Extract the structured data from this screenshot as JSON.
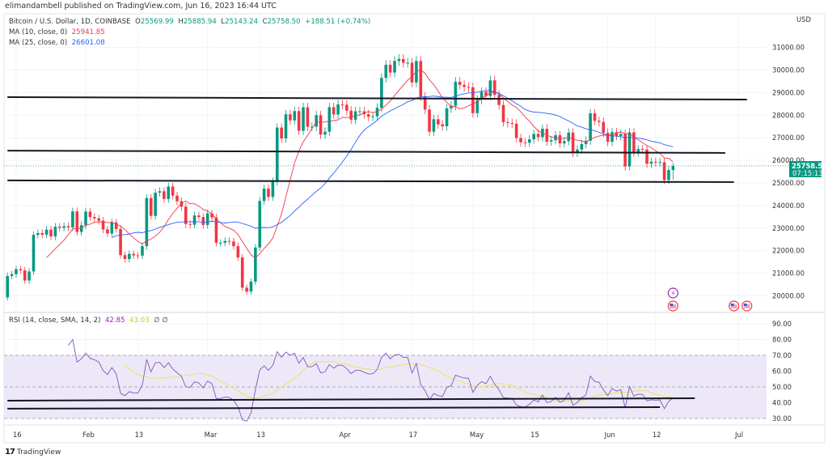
{
  "publisher_line": "elimandambell published on TradingView.com, Jun 16, 2023 16:44 UTC",
  "legend": {
    "symbol": "Bitcoin / U.S. Dollar, 1D, COINBASE",
    "open_label": "O",
    "open": "25569.99",
    "high_label": "H",
    "high": "25885.94",
    "low_label": "L",
    "low": "25143.24",
    "close_label": "C",
    "close": "25758.50",
    "change": "+188.51 (+0.74%)",
    "ma10_label": "MA (10, close, 0)",
    "ma10_value": "25941.85",
    "ma25_label": "MA (25, close, 0)",
    "ma25_value": "26601.08",
    "rsi_label": "RSI (14, close, SMA, 14, 2)",
    "rsi_value": "42.85",
    "rsi_ma_value": "43.03",
    "rsi_extra": "∅ ∅"
  },
  "logo_text": "TradingView",
  "colors": {
    "up": "#089981",
    "down": "#f23645",
    "ma10": "#f23645",
    "ma25": "#2962ff",
    "rsi": "#7e57c2",
    "rsi_ma": "#e3e84a",
    "trendline": "#131722",
    "rsi_band": "#ede8f7"
  },
  "chart_data": [
    {
      "type": "candlestick",
      "start_date": "2023-01-14",
      "currency_label": "USD",
      "close": [
        20880,
        20960,
        21180,
        21130,
        20680,
        21080,
        22700,
        22780,
        22710,
        22930,
        22630,
        23060,
        23010,
        23080,
        23030,
        23740,
        22830,
        23130,
        23730,
        23490,
        23430,
        23330,
        22940,
        22760,
        23250,
        22960,
        21800,
        21630,
        21860,
        21790,
        21780,
        22200,
        24330,
        23540,
        24570,
        24630,
        24290,
        24840,
        24440,
        24190,
        23950,
        23180,
        23150,
        23560,
        23490,
        23140,
        23650,
        23470,
        22350,
        22350,
        22430,
        22410,
        22200,
        21700,
        20360,
        20190,
        20630,
        22140,
        24200,
        24750,
        24380,
        25060,
        27450,
        26970,
        28040,
        27770,
        28180,
        27310,
        28350,
        27490,
        27490,
        28000,
        27140,
        27270,
        28350,
        28030,
        28480,
        28460,
        28200,
        27800,
        28170,
        28170,
        28040,
        27930,
        27950,
        28330,
        29650,
        30230,
        29890,
        30400,
        30490,
        30320,
        30320,
        29450,
        30400,
        28820,
        28250,
        27270,
        27820,
        27590,
        27510,
        28300,
        28420,
        29480,
        29340,
        29250,
        29230,
        28090,
        28680,
        29030,
        28850,
        29540,
        28900,
        28450,
        27690,
        27650,
        27620,
        26990,
        26800,
        26780,
        26930,
        27170,
        27030,
        27400,
        26830,
        26890,
        27110,
        26750,
        26850,
        27230,
        26330,
        26480,
        26720,
        26870,
        28080,
        27750,
        27700,
        27220,
        26820,
        27250,
        27080,
        27170,
        25730,
        27240,
        26350,
        26500,
        26480,
        25850,
        25940,
        25900,
        25920,
        25130,
        25569.99,
        25758.5
      ],
      "first_open": 19930,
      "last_candle": {
        "open": 25569.99,
        "high": 25885.94,
        "low": 25143.24,
        "close": 25758.5
      },
      "overlays": [
        "MA 10",
        "MA 25"
      ],
      "ylim": [
        19400,
        31800
      ],
      "y_ticks": [
        "31000.00",
        "30000.00",
        "29000.00",
        "28000.00",
        "27000.00",
        "26000.00",
        "25000.00",
        "24000.00",
        "23000.00",
        "22000.00",
        "21000.00",
        "20000.00"
      ],
      "last_price_label": "25758.50",
      "countdown": "07:15:13",
      "trendlines": [
        {
          "from": [
            "2023-01-14",
            28800
          ],
          "to": [
            "2023-07-03",
            28690
          ]
        },
        {
          "from": [
            "2023-01-14",
            26430
          ],
          "to": [
            "2023-06-28",
            26330
          ]
        },
        {
          "from": [
            "2023-01-14",
            25110
          ],
          "to": [
            "2023-06-30",
            25040
          ]
        }
      ],
      "grid": true
    },
    {
      "type": "line",
      "indicator": "RSI",
      "ylim": [
        25,
        95
      ],
      "y_ticks": [
        "90.00",
        "80.00",
        "70.00",
        "60.00",
        "50.00",
        "40.00",
        "30.00"
      ],
      "band": [
        30,
        70
      ],
      "trendlines": [
        {
          "from": [
            "2023-01-14",
            41.3
          ],
          "to": [
            "2023-06-21",
            42.8
          ]
        },
        {
          "from": [
            "2023-01-14",
            36.2
          ],
          "to": [
            "2023-06-13",
            37.2
          ]
        }
      ]
    }
  ],
  "x_ticks": [
    {
      "label": "16",
      "date": "2023-01-16"
    },
    {
      "label": "Feb",
      "date": "2023-02-01"
    },
    {
      "label": "13",
      "date": "2023-02-13"
    },
    {
      "label": "Mar",
      "date": "2023-03-01"
    },
    {
      "label": "13",
      "date": "2023-03-13"
    },
    {
      "label": "Apr",
      "date": "2023-04-01"
    },
    {
      "label": "17",
      "date": "2023-04-17"
    },
    {
      "label": "May",
      "date": "2023-05-01"
    },
    {
      "label": "15",
      "date": "2023-05-15"
    },
    {
      "label": "Jun",
      "date": "2023-06-01"
    },
    {
      "label": "12",
      "date": "2023-06-12"
    },
    {
      "label": "Jul",
      "date": "2023-07-01"
    }
  ],
  "events": [
    {
      "icon": "lightning-event-icon",
      "date": "2023-06-16"
    },
    {
      "icon": "us-flag-event-icon",
      "date": "2023-06-16"
    },
    {
      "icon": "us-flag-event-icon",
      "date": "2023-06-30"
    },
    {
      "icon": "us-flag-event-icon",
      "date": "2023-07-03"
    }
  ]
}
